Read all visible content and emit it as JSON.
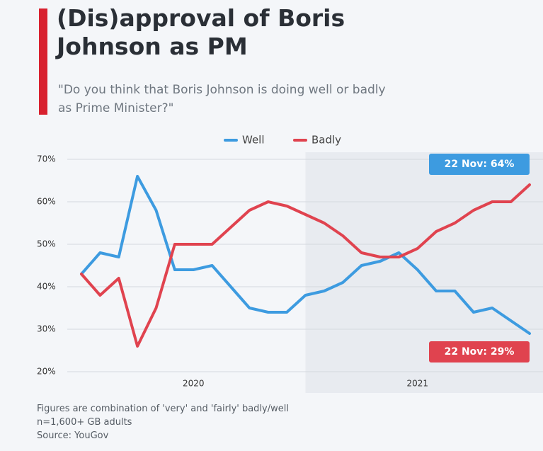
{
  "chart_data": {
    "type": "line",
    "title": "(Dis)approval of Boris Johnson as PM",
    "subtitle": "\"Do you think that Boris Johnson is doing well or badly as Prime Minister?\"",
    "categories": [
      null,
      null,
      null,
      null,
      null,
      null,
      "2020",
      null,
      null,
      null,
      null,
      null,
      null,
      null,
      null,
      null,
      null,
      null,
      "2021",
      null,
      null,
      null,
      null,
      null,
      null
    ],
    "series": [
      {
        "name": "Well",
        "color": "#3d9be0",
        "values": [
          43,
          48,
          47,
          66,
          58,
          44,
          44,
          45,
          40,
          35,
          34,
          34,
          38,
          39,
          41,
          45,
          46,
          48,
          44,
          39,
          39,
          34,
          35,
          32,
          29
        ]
      },
      {
        "name": "Badly",
        "color": "#e0434f",
        "values": [
          43,
          38,
          42,
          26,
          35,
          50,
          50,
          50,
          54,
          58,
          60,
          59,
          57,
          55,
          52,
          48,
          47,
          47,
          49,
          53,
          55,
          58,
          60,
          60,
          64
        ]
      }
    ],
    "annotations": [
      "22 Nov: 64%",
      "22 Nov: 29%"
    ],
    "ylim": [
      20,
      70
    ],
    "yticks": [
      {
        "value": 20,
        "label": "20%"
      },
      {
        "value": 30,
        "label": "30%"
      },
      {
        "value": 40,
        "label": "40%"
      },
      {
        "value": 50,
        "label": "50%"
      },
      {
        "value": 60,
        "label": "60%"
      },
      {
        "value": 70,
        "label": "70%"
      }
    ],
    "grid": true,
    "notes": [
      "Figures are combination of 'very' and 'fairly' badly/well",
      "n=1,600+ GB adults"
    ],
    "source": "Source: YouGov"
  }
}
